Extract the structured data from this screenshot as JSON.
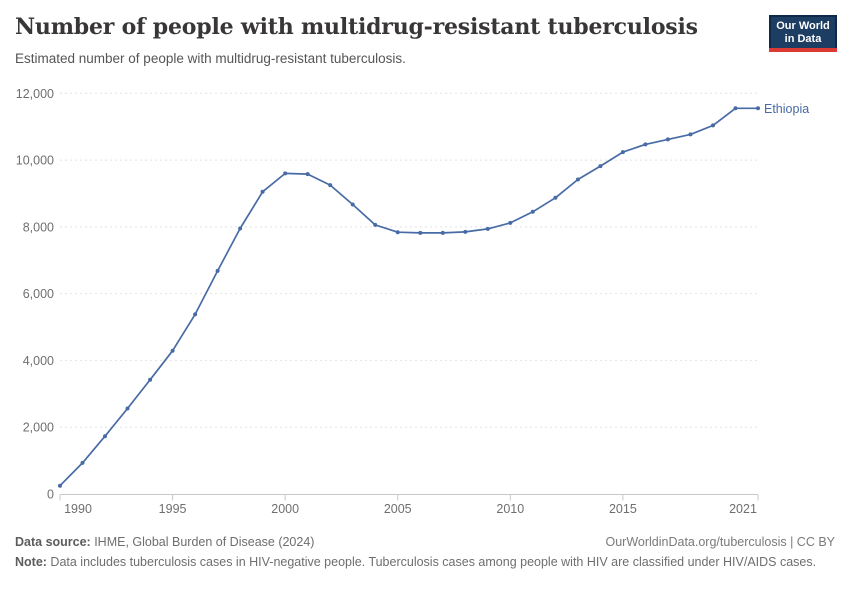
{
  "header": {
    "title": "Number of people with multidrug-resistant tuberculosis",
    "subtitle": "Estimated number of people with multidrug-resistant tuberculosis.",
    "logo": {
      "line1": "Our World",
      "line2": "in Data"
    }
  },
  "chart_data": {
    "type": "line",
    "title": "Number of people with multidrug-resistant tuberculosis",
    "subtitle": "Estimated number of people with multidrug-resistant tuberculosis.",
    "xlabel": "",
    "ylabel": "",
    "x": [
      1990,
      1991,
      1992,
      1993,
      1994,
      1995,
      1996,
      1997,
      1998,
      1999,
      2000,
      2001,
      2002,
      2003,
      2004,
      2005,
      2006,
      2007,
      2008,
      2009,
      2010,
      2011,
      2012,
      2013,
      2014,
      2015,
      2016,
      2017,
      2018,
      2019,
      2020,
      2021
    ],
    "series": [
      {
        "name": "Ethiopia",
        "color": "#486ba5",
        "values": [
          250,
          930,
          1730,
          2560,
          3420,
          4290,
          5380,
          6680,
          7950,
          9050,
          9600,
          9580,
          9250,
          8670,
          8060,
          7840,
          7820,
          7820,
          7850,
          7940,
          8120,
          8450,
          8870,
          9420,
          9820,
          10240,
          10470,
          10620,
          10770,
          11040,
          11550,
          11550
        ]
      }
    ],
    "xlim": [
      1990,
      2021
    ],
    "ylim": [
      0,
      12000
    ],
    "x_ticks": [
      1990,
      1995,
      2000,
      2005,
      2010,
      2015,
      2021
    ],
    "y_ticks": [
      0,
      2000,
      4000,
      6000,
      8000,
      10000,
      12000
    ],
    "grid": "horizontal-dashed",
    "legend_position": "end-of-line-label",
    "colors": {
      "gridline": "#e2e2e2",
      "axis": "#c8c8c8",
      "tick_label": "#6f6f6f"
    }
  },
  "footer": {
    "datasource_label": "Data source:",
    "datasource_text": " IHME, Global Burden of Disease (2024)",
    "attribution": "OurWorldinData.org/tuberculosis | CC BY",
    "note_label": "Note:",
    "note_text": " Data includes tuberculosis cases in HIV-negative people. Tuberculosis cases among people with HIV are classified under HIV/AIDS cases."
  }
}
